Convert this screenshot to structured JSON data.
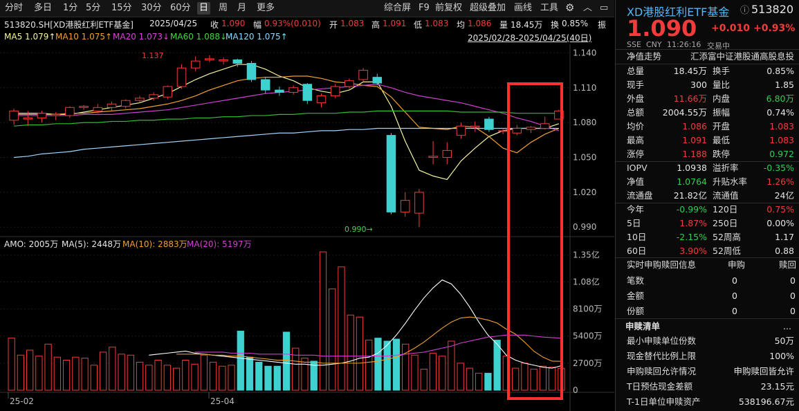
{
  "toolbar": {
    "periods": [
      "分时",
      "多日",
      "1分",
      "5分",
      "15分",
      "30分",
      "60分",
      "日",
      "周",
      "月",
      "更多"
    ],
    "active_period": "日",
    "right_tools": [
      "综合屏",
      "F9",
      "前复权",
      "超级叠加",
      "画线",
      "工具"
    ],
    "gear_icon": "gear-icon",
    "collapse_icon": "chevron-up-icon"
  },
  "info": {
    "code_name": "513820.SH[XD港股红利ETF基金]",
    "date": "2025/04/25",
    "close_label": "收",
    "close": "1.090",
    "change_label": "幅",
    "change": "0.93%(0.010)",
    "open_label": "开",
    "open": "1.083",
    "high_label": "高",
    "high": "1.091",
    "low_label": "低",
    "low": "1.083",
    "avg_label": "均",
    "avg": "1.086",
    "volume_label": "量",
    "volume": "18.45万",
    "turnover_label": "换",
    "turnover": "0.85%",
    "trailing": "振"
  },
  "ma": {
    "ma5": "MA5 1.079↑",
    "ma10": "MA10 1.075↑",
    "ma20": "MA20 1.073↓",
    "ma60": "MA60 1.088↓",
    "ma120": "MA120 1.075↑",
    "range": "2025/02/28-2025/04/25(40日)"
  },
  "amo": {
    "label": "AMO: 2005万",
    "ma5": "MA(5): 2448万",
    "ma10": "MA(10): 2883万",
    "ma20": "MA(20): 5197万"
  },
  "chart_data": [
    {
      "type": "candlestick",
      "title": "513820.SH[XD港股红利ETF基金]",
      "price_axis": [
        "1.140",
        "1.110",
        "1.080",
        "1.050",
        "1.020",
        "0.990"
      ],
      "ylim": [
        0.983,
        1.145
      ],
      "high_annotation": "1.137",
      "low_annotation": "0.990→",
      "candles": [
        {
          "o": 1.082,
          "c": 1.09,
          "h": 1.092,
          "l": 1.078
        },
        {
          "o": 1.083,
          "c": 1.084,
          "h": 1.09,
          "l": 1.077
        },
        {
          "o": 1.084,
          "c": 1.088,
          "h": 1.09,
          "l": 1.08
        },
        {
          "o": 1.086,
          "c": 1.087,
          "h": 1.089,
          "l": 1.082
        },
        {
          "o": 1.086,
          "c": 1.093,
          "h": 1.094,
          "l": 1.084
        },
        {
          "o": 1.093,
          "c": 1.094,
          "h": 1.095,
          "l": 1.091
        },
        {
          "o": 1.09,
          "c": 1.093,
          "h": 1.096,
          "l": 1.088
        },
        {
          "o": 1.093,
          "c": 1.096,
          "h": 1.098,
          "l": 1.09
        },
        {
          "o": 1.094,
          "c": 1.099,
          "h": 1.1,
          "l": 1.092
        },
        {
          "o": 1.099,
          "c": 1.101,
          "h": 1.103,
          "l": 1.097
        },
        {
          "o": 1.101,
          "c": 1.104,
          "h": 1.106,
          "l": 1.099
        },
        {
          "o": 1.102,
          "c": 1.111,
          "h": 1.112,
          "l": 1.1
        },
        {
          "o": 1.111,
          "c": 1.127,
          "h": 1.13,
          "l": 1.109
        },
        {
          "o": 1.127,
          "c": 1.133,
          "h": 1.137,
          "l": 1.124
        },
        {
          "o": 1.134,
          "c": 1.135,
          "h": 1.138,
          "l": 1.132
        },
        {
          "o": 1.133,
          "c": 1.134,
          "h": 1.136,
          "l": 1.13
        },
        {
          "o": 1.134,
          "c": 1.131,
          "h": 1.135,
          "l": 1.128
        },
        {
          "o": 1.131,
          "c": 1.117,
          "h": 1.133,
          "l": 1.115
        },
        {
          "o": 1.117,
          "c": 1.108,
          "h": 1.119,
          "l": 1.105
        },
        {
          "o": 1.108,
          "c": 1.106,
          "h": 1.111,
          "l": 1.103
        },
        {
          "o": 1.106,
          "c": 1.11,
          "h": 1.112,
          "l": 1.104
        },
        {
          "o": 1.113,
          "c": 1.099,
          "h": 1.114,
          "l": 1.096
        },
        {
          "o": 1.097,
          "c": 1.103,
          "h": 1.105,
          "l": 1.093
        },
        {
          "o": 1.103,
          "c": 1.111,
          "h": 1.113,
          "l": 1.101
        },
        {
          "o": 1.111,
          "c": 1.116,
          "h": 1.118,
          "l": 1.109
        },
        {
          "o": 1.117,
          "c": 1.125,
          "h": 1.127,
          "l": 1.115
        },
        {
          "o": 1.119,
          "c": 1.114,
          "h": 1.122,
          "l": 1.112
        },
        {
          "o": 1.069,
          "c": 1.003,
          "h": 1.071,
          "l": 1.001
        },
        {
          "o": 1.003,
          "c": 1.013,
          "h": 1.02,
          "l": 0.999
        },
        {
          "o": 1.002,
          "c": 1.02,
          "h": 1.023,
          "l": 0.99
        },
        {
          "o": 1.05,
          "c": 1.051,
          "h": 1.064,
          "l": 1.044
        },
        {
          "o": 1.05,
          "c": 1.056,
          "h": 1.063,
          "l": 1.044
        },
        {
          "o": 1.069,
          "c": 1.077,
          "h": 1.08,
          "l": 1.066
        },
        {
          "o": 1.076,
          "c": 1.077,
          "h": 1.081,
          "l": 1.072
        },
        {
          "o": 1.083,
          "c": 1.074,
          "h": 1.085,
          "l": 1.072
        },
        {
          "o": 1.073,
          "c": 1.073,
          "h": 1.075,
          "l": 1.07
        },
        {
          "o": 1.071,
          "c": 1.075,
          "h": 1.078,
          "l": 1.069
        },
        {
          "o": 1.074,
          "c": 1.076,
          "h": 1.077,
          "l": 1.071
        },
        {
          "o": 1.075,
          "c": 1.079,
          "h": 1.085,
          "l": 1.074
        },
        {
          "o": 1.083,
          "c": 1.09,
          "h": 1.091,
          "l": 1.083
        }
      ],
      "series": [
        {
          "name": "MA5",
          "color": "#f5f5a0",
          "values": [
            1.088,
            1.088,
            1.088,
            1.087,
            1.087,
            1.089,
            1.091,
            1.093,
            1.095,
            1.097,
            1.101,
            1.105,
            1.111,
            1.117,
            1.122,
            1.126,
            1.13,
            1.13,
            1.126,
            1.12,
            1.116,
            1.11,
            1.107,
            1.105,
            1.108,
            1.115,
            1.115,
            1.094,
            1.064,
            1.039,
            1.034,
            1.031,
            1.047,
            1.058,
            1.068,
            1.073,
            1.075,
            1.075,
            1.075,
            1.079
          ]
        },
        {
          "name": "MA10",
          "color": "#f0a030",
          "values": [
            1.087,
            1.087,
            1.087,
            1.087,
            1.088,
            1.088,
            1.089,
            1.09,
            1.091,
            1.092,
            1.094,
            1.096,
            1.099,
            1.103,
            1.108,
            1.112,
            1.116,
            1.118,
            1.119,
            1.119,
            1.12,
            1.12,
            1.118,
            1.115,
            1.114,
            1.112,
            1.111,
            1.102,
            1.089,
            1.076,
            1.075,
            1.074,
            1.077,
            1.076,
            1.068,
            1.058,
            1.054,
            1.063,
            1.07,
            1.075
          ]
        },
        {
          "name": "MA20",
          "color": "#d040d0",
          "values": [
            1.086,
            1.086,
            1.086,
            1.086,
            1.086,
            1.087,
            1.087,
            1.087,
            1.088,
            1.089,
            1.09,
            1.091,
            1.093,
            1.095,
            1.097,
            1.099,
            1.101,
            1.103,
            1.105,
            1.106,
            1.107,
            1.108,
            1.109,
            1.11,
            1.111,
            1.112,
            1.113,
            1.11,
            1.106,
            1.103,
            1.101,
            1.099,
            1.097,
            1.094,
            1.091,
            1.088,
            1.084,
            1.081,
            1.077,
            1.073
          ]
        },
        {
          "name": "MA60",
          "color": "#2fbf2f",
          "values": [
            1.077,
            1.078,
            1.078,
            1.079,
            1.079,
            1.08,
            1.08,
            1.081,
            1.081,
            1.082,
            1.082,
            1.083,
            1.083,
            1.084,
            1.084,
            1.085,
            1.085,
            1.086,
            1.086,
            1.087,
            1.087,
            1.088,
            1.088,
            1.088,
            1.089,
            1.089,
            1.09,
            1.09,
            1.09,
            1.09,
            1.09,
            1.09,
            1.089,
            1.089,
            1.089,
            1.089,
            1.088,
            1.088,
            1.088,
            1.088
          ]
        },
        {
          "name": "MA120",
          "color": "#a0d8ff",
          "values": [
            1.05,
            1.051,
            1.053,
            1.054,
            1.055,
            1.057,
            1.058,
            1.059,
            1.06,
            1.061,
            1.062,
            1.063,
            1.064,
            1.065,
            1.066,
            1.067,
            1.068,
            1.069,
            1.07,
            1.071,
            1.071,
            1.072,
            1.073,
            1.073,
            1.074,
            1.074,
            1.075,
            1.075,
            1.075,
            1.075,
            1.075,
            1.075,
            1.075,
            1.075,
            1.075,
            1.075,
            1.075,
            1.075,
            1.075,
            1.075
          ]
        }
      ]
    },
    {
      "type": "bar",
      "title": "AMO",
      "unit_axis": [
        "1.35亿",
        "1.08亿",
        "8100万",
        "5400万",
        "2700万",
        "0"
      ],
      "ylim": [
        0,
        13800
      ],
      "x_labels": {
        "0": "25-02",
        "22": "25-04"
      },
      "values": [
        5200,
        3500,
        4000,
        3400,
        4600,
        3300,
        3000,
        3300,
        3200,
        2500,
        3800,
        4300,
        3600,
        3500,
        2800,
        2500,
        3000,
        2500,
        2200,
        3000,
        2600,
        3500,
        2800,
        2400,
        2500,
        5900,
        3300,
        2800,
        2400,
        2400,
        5800,
        4200,
        3200,
        2900,
        13800,
        10100,
        12300,
        7500,
        7300,
        5000,
        5200,
        4900,
        5100,
        4600,
        3500,
        2100,
        3700,
        3400,
        4900,
        2700,
        2200,
        1700,
        1700,
        5000,
        3400,
        2200,
        2700,
        2100,
        2400,
        2300,
        2200
      ],
      "series": [
        {
          "name": "MA(5)",
          "color": "#ffffff",
          "values": [
            3500,
            3600,
            3700,
            3800,
            3900,
            3700,
            3600,
            3500,
            3400,
            3300,
            3200,
            3100,
            3000,
            2900,
            2800,
            2700,
            2600,
            2600,
            2500,
            2500,
            2600,
            2700,
            2900,
            3200,
            3300,
            3700,
            4500,
            5500,
            6700,
            8000,
            9200,
            10200,
            11000,
            10600,
            9600,
            8300,
            6800,
            5500,
            4600,
            3500,
            3000,
            2700,
            2500,
            2300,
            2200,
            2448
          ]
        },
        {
          "name": "MA(10)",
          "color": "#f0a030",
          "values": [
            3600,
            3600,
            3600,
            3600,
            3500,
            3500,
            3400,
            3400,
            3300,
            3200,
            3100,
            3000,
            3000,
            2900,
            2800,
            2800,
            2700,
            2700,
            2700,
            2700,
            2700,
            2800,
            2900,
            3100,
            3300,
            3700,
            4200,
            4800,
            5500,
            6200,
            6800,
            7200,
            7300,
            7200,
            7000,
            6700,
            6100,
            5600,
            4800,
            3900,
            3300,
            2900,
            2883
          ]
        },
        {
          "name": "MA(20)",
          "color": "#d040d0",
          "values": [
            3800,
            3800,
            3800,
            3800,
            3700,
            3700,
            3700,
            3600,
            3600,
            3600,
            3600,
            3500,
            3500,
            3500,
            3400,
            3400,
            3400,
            3400,
            3400,
            3400,
            3400,
            3400,
            3500,
            3600,
            3700,
            3800,
            4000,
            4200,
            4400,
            4700,
            4900,
            5100,
            5300,
            5400,
            5500,
            5500,
            5500,
            5400,
            5300,
            5250,
            5197
          ]
        }
      ]
    }
  ],
  "right": {
    "title": "XD港股红利ETF基金",
    "code": "513820",
    "price": "1.090",
    "change": "+0.010",
    "change_pct": "+0.93%",
    "exchange": "SSE",
    "currency": "CNY",
    "time": "11:26:16",
    "status": "交易中",
    "nav_trend_label": "净值走势",
    "nav_index": "汇添富中证港股通高股息投",
    "rows": [
      {
        "l1": "总量",
        "v1": "18.45万",
        "c1": "white",
        "l2": "换手",
        "v2": "0.85%",
        "c2": "white"
      },
      {
        "l1": "现手",
        "v1": "300",
        "c1": "white",
        "l2": "量比",
        "v2": "1.85",
        "c2": "white"
      },
      {
        "l1": "外盘",
        "v1": "11.66万",
        "c1": "red",
        "l2": "内盘",
        "v2": "6.80万",
        "c2": "green"
      },
      {
        "l1": "总额",
        "v1": "2004.55万",
        "c1": "white",
        "l2": "振幅",
        "v2": "0.74%",
        "c2": "white"
      },
      {
        "l1": "均价",
        "v1": "1.086",
        "c1": "red",
        "l2": "开盘",
        "v2": "1.083",
        "c2": "red"
      },
      {
        "l1": "最高",
        "v1": "1.091",
        "c1": "red",
        "l2": "最低",
        "v2": "1.083",
        "c2": "red"
      },
      {
        "l1": "涨停",
        "v1": "1.188",
        "c1": "red",
        "l2": "跌停",
        "v2": "0.972",
        "c2": "green"
      }
    ],
    "rows2": [
      {
        "l1": "IOPV",
        "v1": "1.0938",
        "c1": "white",
        "l2": "溢折率",
        "v2": "-0.35%",
        "c2": "green"
      },
      {
        "l1": "净值",
        "v1": "1.0764",
        "c1": "green",
        "l2": "升贴水率",
        "v2": "1.26%",
        "c2": "red"
      },
      {
        "l1": "流通盘",
        "v1": "21.82亿",
        "c1": "white",
        "l2": "流通值",
        "v2": "24亿",
        "c2": "white"
      }
    ],
    "rows3": [
      {
        "l1": "今年",
        "v1": "-0.99%",
        "c1": "green",
        "l2": "120日",
        "v2": "0.75%",
        "c2": "red"
      },
      {
        "l1": "5日",
        "v1": "1.87%",
        "c1": "red",
        "l2": "250日",
        "v2": "0.00%",
        "c2": "white"
      },
      {
        "l1": "10日",
        "v1": "-2.15%",
        "c1": "green",
        "l2": "52周高",
        "v2": "1.17",
        "c2": "white"
      },
      {
        "l1": "60日",
        "v1": "3.90%",
        "c1": "red",
        "l2": "52周低",
        "v2": "0.88",
        "c2": "white"
      }
    ],
    "redeem": {
      "title": "实时申购赎回信息",
      "buy": "申购",
      "sell": "赎回",
      "rows": [
        {
          "label": "笔数",
          "buy": "0",
          "sell": "0"
        },
        {
          "label": "金额",
          "buy": "0",
          "sell": "0"
        },
        {
          "label": "份额",
          "buy": "0",
          "sell": "0"
        }
      ]
    },
    "list": {
      "title": "申赎清单",
      "more": "...",
      "rows": [
        {
          "label": "最小申赎单位份数",
          "value": "50万"
        },
        {
          "label": "现金替代比例上限",
          "value": "100%"
        },
        {
          "label": "申购赎回允许情况",
          "value": "申购赎回皆允许"
        },
        {
          "label": "T日预估现金差额",
          "value": "23.15元"
        },
        {
          "label": "T-1日单位申赎资产",
          "value": "538196.67元"
        }
      ]
    },
    "expand_icon": "double-chevron-right-icon"
  },
  "colors": {
    "up": "#f23b3b",
    "down": "#3fd0d0",
    "highlight_box": "#ff3030"
  }
}
